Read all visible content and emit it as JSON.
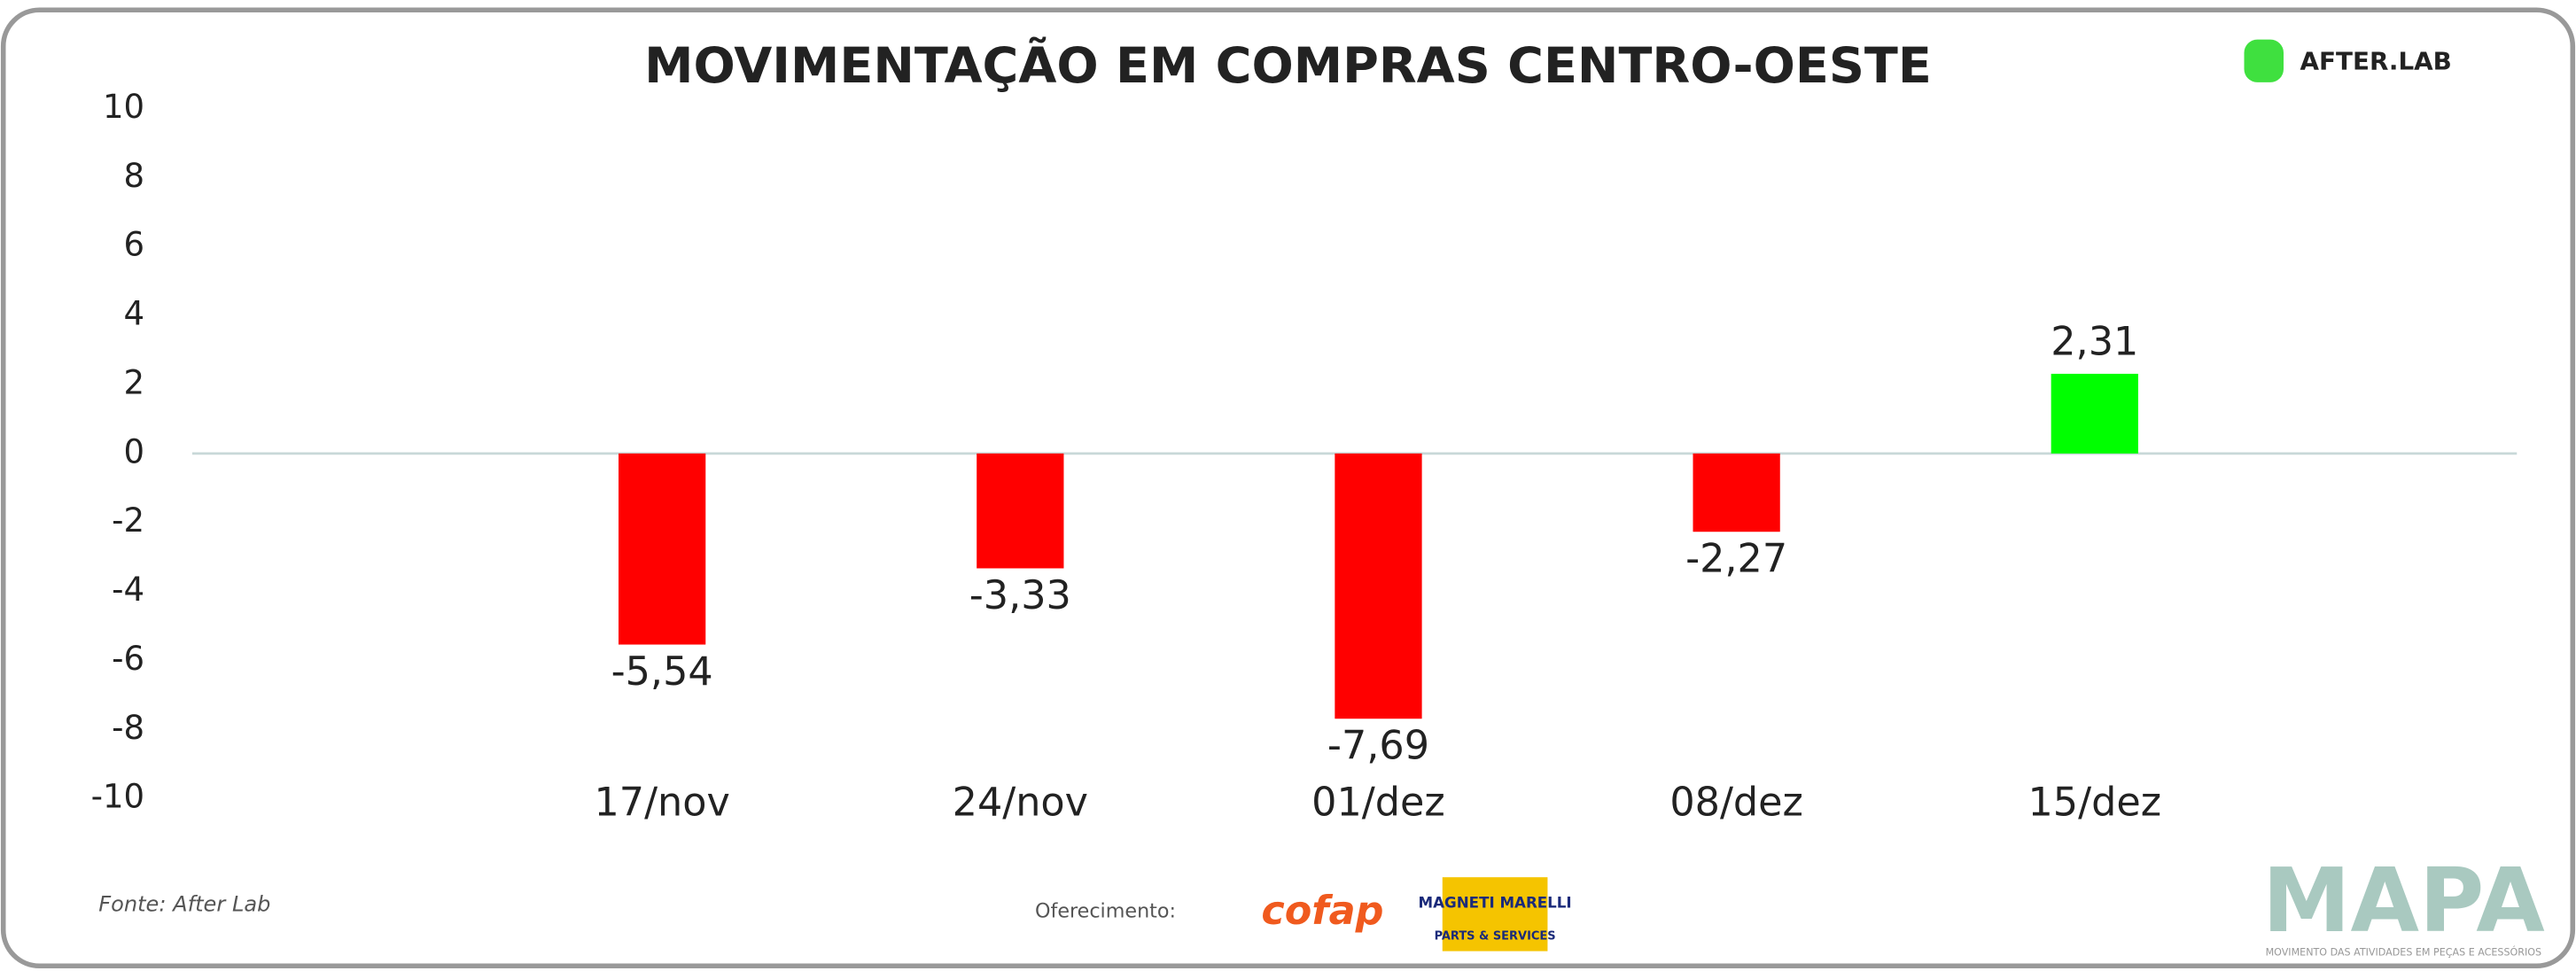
{
  "chart_data": {
    "type": "bar",
    "title": "MOVIMENTAÇÃO EM COMPRAS CENTRO-OESTE",
    "categories": [
      "17/nov",
      "24/nov",
      "01/dez",
      "08/dez",
      "15/dez"
    ],
    "values": [
      -5.54,
      -3.33,
      -7.69,
      -2.27,
      2.31
    ],
    "value_labels": [
      "-5,54",
      "-3,33",
      "-7,69",
      "-2,27",
      "2,31"
    ],
    "colors": [
      "#ff0000",
      "#ff0000",
      "#ff0000",
      "#ff0000",
      "#00ff00"
    ],
    "ylim": [
      -10,
      10
    ],
    "yticks": [
      -10,
      -8,
      -6,
      -4,
      -2,
      0,
      2,
      4,
      6,
      8,
      10
    ],
    "grid": false,
    "source": "Fonte: After Lab",
    "sponsor_label": "Oferecimento:",
    "sponsors": [
      "cofap",
      "MAGNETI MARELLI",
      "PARTS & SERVICES"
    ],
    "brand": "AFTER.LAB",
    "logo": "MAPA",
    "logo_tagline": "MOVIMENTO DAS ATIVIDADES EM PEÇAS E ACESSÓRIOS"
  }
}
